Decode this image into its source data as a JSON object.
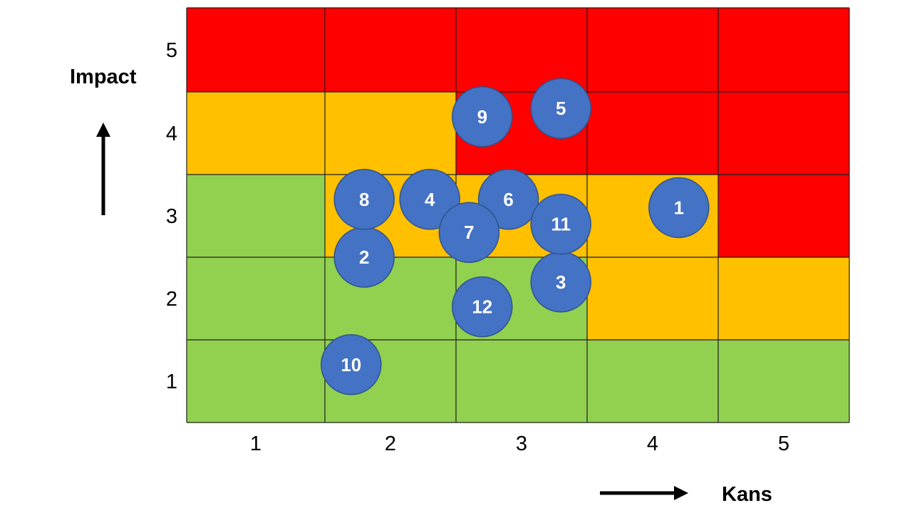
{
  "chart_data": {
    "type": "scatter",
    "subtype": "risk-matrix",
    "xlabel": "Kans",
    "ylabel": "Impact",
    "x_categories": [
      "1",
      "2",
      "3",
      "4",
      "5"
    ],
    "y_categories": [
      "1",
      "2",
      "3",
      "4",
      "5"
    ],
    "xlim": [
      0.5,
      5.5
    ],
    "ylim": [
      0.5,
      5.5
    ],
    "grid": true,
    "colors": {
      "green": "#92D050",
      "orange": "#FFC000",
      "red": "#FF0000",
      "bubble": "#4472C4",
      "bubble_border": "#2F528F",
      "grid_line": "#1f1f1f"
    },
    "cells": [
      [
        "green",
        "green",
        "green",
        "green",
        "green"
      ],
      [
        "green",
        "green",
        "green",
        "orange",
        "orange"
      ],
      [
        "green",
        "orange",
        "orange",
        "orange",
        "red"
      ],
      [
        "orange",
        "orange",
        "red",
        "red",
        "red"
      ],
      [
        "red",
        "red",
        "red",
        "red",
        "red"
      ]
    ],
    "points": [
      {
        "label": "1",
        "x": 4.2,
        "y": 3.1
      },
      {
        "label": "2",
        "x": 1.8,
        "y": 2.5
      },
      {
        "label": "3",
        "x": 3.3,
        "y": 2.2
      },
      {
        "label": "4",
        "x": 2.3,
        "y": 3.2
      },
      {
        "label": "5",
        "x": 3.3,
        "y": 4.3
      },
      {
        "label": "6",
        "x": 2.9,
        "y": 3.2
      },
      {
        "label": "7",
        "x": 2.6,
        "y": 2.8
      },
      {
        "label": "8",
        "x": 1.8,
        "y": 3.2
      },
      {
        "label": "9",
        "x": 2.7,
        "y": 4.2
      },
      {
        "label": "10",
        "x": 1.7,
        "y": 1.2
      },
      {
        "label": "11",
        "x": 3.3,
        "y": 2.9
      },
      {
        "label": "12",
        "x": 2.7,
        "y": 1.9
      }
    ]
  }
}
